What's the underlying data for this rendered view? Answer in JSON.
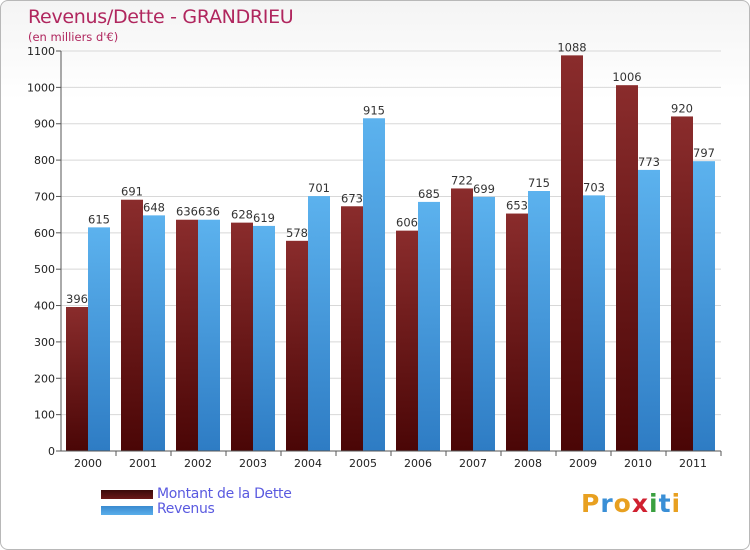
{
  "title": "Revenus/Dette - GRANDRIEU",
  "subtitle": "(en milliers d'€)",
  "logo": {
    "text": "Proxiti",
    "letters": [
      {
        "ch": "P",
        "color": "#e8a020"
      },
      {
        "ch": "r",
        "color": "#3a8fd6"
      },
      {
        "ch": "o",
        "color": "#e8a020"
      },
      {
        "ch": "x",
        "color": "#d02030"
      },
      {
        "ch": "i",
        "color": "#3aa040"
      },
      {
        "ch": "t",
        "color": "#3a8fd6"
      },
      {
        "ch": "i",
        "color": "#e8a020"
      }
    ]
  },
  "chart_data": {
    "type": "bar",
    "title": "Revenus/Dette - GRANDRIEU",
    "subtitle": "(en milliers d'€)",
    "categories": [
      "2000",
      "2001",
      "2002",
      "2003",
      "2004",
      "2005",
      "2006",
      "2007",
      "2008",
      "2009",
      "2010",
      "2011"
    ],
    "series": [
      {
        "name": "Montant de la Dette",
        "color": "#6a1818",
        "values": [
          396,
          691,
          636,
          628,
          578,
          673,
          606,
          722,
          653,
          1088,
          1006,
          920
        ]
      },
      {
        "name": "Revenus",
        "color": "#4aa0e4",
        "values": [
          615,
          648,
          636,
          619,
          701,
          915,
          685,
          699,
          715,
          703,
          773,
          797
        ]
      }
    ],
    "ylim": [
      0,
      1100
    ],
    "yticks": [
      0,
      100,
      200,
      300,
      400,
      500,
      600,
      700,
      800,
      900,
      1000,
      1100
    ],
    "grid": true,
    "legend": "bottom-left"
  }
}
